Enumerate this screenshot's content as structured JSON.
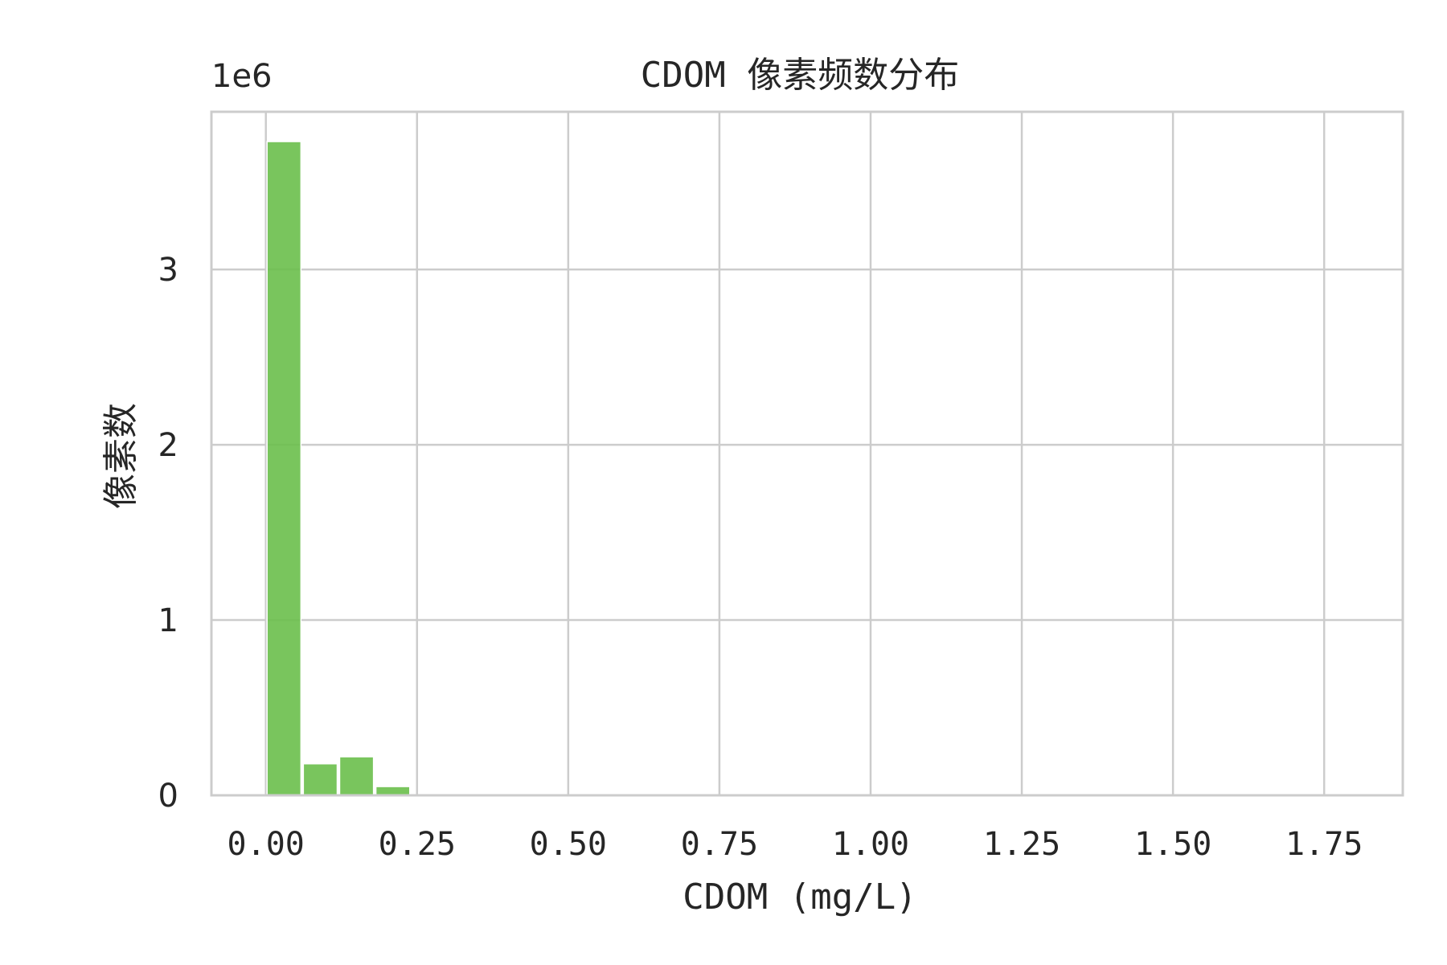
{
  "chart_data": {
    "type": "bar",
    "title": "CDOM 像素频数分布",
    "xlabel": "CDOM (mg/L)",
    "ylabel": "像素数",
    "y_offset_label": "1e6",
    "xlim": [
      -0.09,
      1.88
    ],
    "ylim": [
      0,
      3.9
    ],
    "xticks": [
      0,
      0.25,
      0.5,
      0.75,
      1.0,
      1.25,
      1.5,
      1.75
    ],
    "xtick_labels": [
      "0.00",
      "0.25",
      "0.50",
      "0.75",
      "1.00",
      "1.25",
      "1.50",
      "1.75"
    ],
    "yticks": [
      0,
      1,
      2,
      3
    ],
    "ytick_labels": [
      "0",
      "1",
      "2",
      "3"
    ],
    "grid": true,
    "bar_color": "#6abf4b",
    "grid_color": "#cccccc",
    "bins": [
      {
        "start": 0.0,
        "end": 0.06,
        "value": 3.73
      },
      {
        "start": 0.06,
        "end": 0.12,
        "value": 0.18
      },
      {
        "start": 0.12,
        "end": 0.18,
        "value": 0.22
      },
      {
        "start": 0.18,
        "end": 0.24,
        "value": 0.05
      }
    ]
  }
}
